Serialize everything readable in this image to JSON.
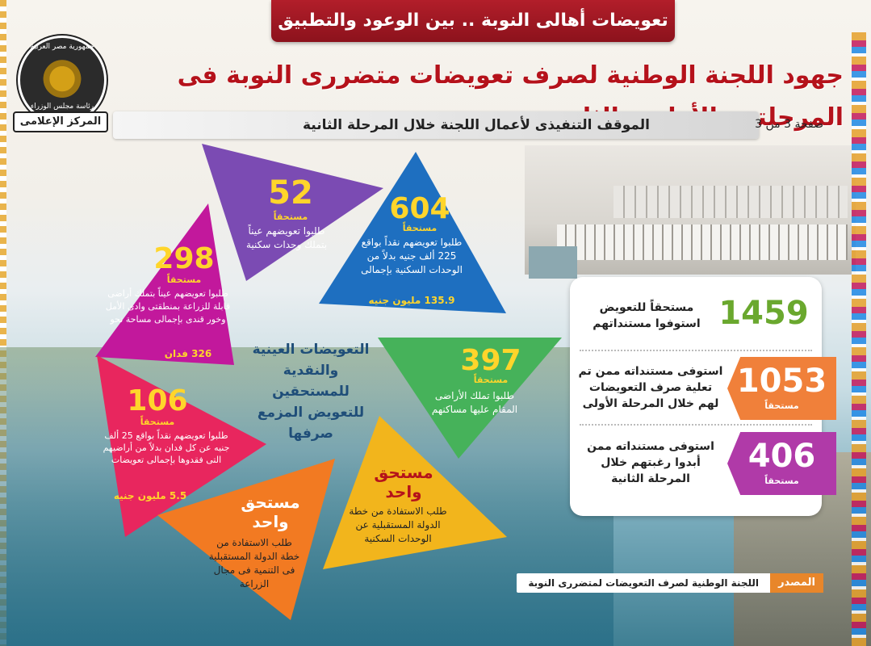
{
  "banner": {
    "text": "تعويضات أهالى النوبة .. بين الوعود والتطبيق"
  },
  "logo": {
    "line1": "جمهورية مصر العربية",
    "line2": "رئاسة مجلس الوزراء",
    "ribbon": "المركز الإعلامى"
  },
  "title": "جهود اللجنة الوطنية لصرف تعويضات متضررى النوبة فى المرحلتين الأولى والثانية",
  "subtitle": "الموقف التنفيذى لأعمال اللجنة خلال المرحلة الثانية",
  "page": "صفحة 3 من 3",
  "center": "التعويضات العينية والنقدية للمستحقين للتعويض المزمع صرفها",
  "triangles": [
    {
      "number": "52",
      "label": "مستحقاً",
      "text": "طلبوا تعويضهم عيناً بتملك وحدات سكنية",
      "color": "#7b4bb3"
    },
    {
      "number": "604",
      "label": "مستحقاً",
      "text": "طلبوا تعويضهم نقداً بواقع 225 ألف جنيه بدلاً من الوحدات السكنية بإجمالى",
      "extra": "135.9 مليون جنيه",
      "color": "#1e6fc0"
    },
    {
      "number": "298",
      "label": "مستحقاً",
      "text": "طلبوا تعويضهم عيناً بتملك أراضى قابلة للزراعة بمنطقتى وادى الأمل وخور قندى بإجمالى مساحة نحو",
      "extra": "326 فدان",
      "color": "#c2189c"
    },
    {
      "number": "397",
      "label": "مستحقاً",
      "text": "طلبوا تملك الأراضى المقام عليها مساكنهم",
      "color": "#46b25a"
    },
    {
      "number": "106",
      "label": "مستحقاً",
      "text": "طلبوا تعويضهم نقداً بواقع 25 ألف جنيه عن كل فدان بدلاً من أراضيهم التى فقدوها بإجمالى تعويضات",
      "extra": "5.5 مليون جنيه",
      "color": "#e8265e"
    },
    {
      "number": "مستحق واحد",
      "text": "طلب الاستفادة من خطة الدولة المستقبلية عن الوحدات السكنية",
      "color": "#f2b51c"
    },
    {
      "number": "مستحق واحد",
      "text": "طلب الاستفادة من خطة الدولة المستقبلية فى التنمية فى مجال الزراعة",
      "color": "#f27a22"
    }
  ],
  "stats": [
    {
      "number": "1459",
      "text": "مستحقاً للتعويض استوفوا مستنداتهم",
      "color": "#6aa82e"
    },
    {
      "number": "1053",
      "label": "مستحقاً",
      "text": "استوفى مستنداته ممن تم تعلية صرف التعويضات لهم خلال المرحلة الأولى",
      "color": "#f0803a"
    },
    {
      "number": "406",
      "label": "مستحقاً",
      "text": "استوفى مستنداته ممن أبدوا رغبتهم خلال المرحلة الثانية",
      "color": "#b03aa8"
    }
  ],
  "source": {
    "label": "المصدر",
    "text": "اللجنة الوطنية لصرف التعويضات لمتضررى النوبة"
  }
}
